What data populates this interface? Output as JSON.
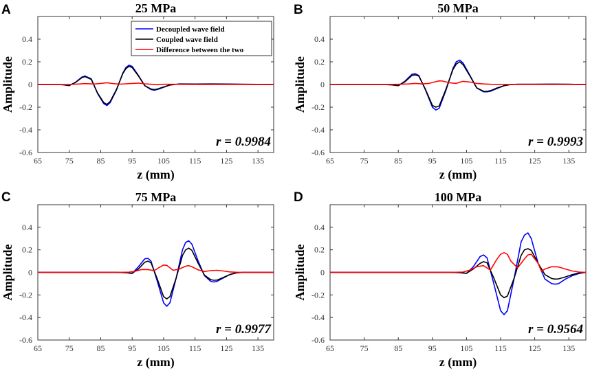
{
  "chart_data": [
    {
      "type": "line",
      "panel_label": "A",
      "title": "25 MPa",
      "xlabel": "z (mm)",
      "ylabel": "Amplitude",
      "xlim": [
        65,
        140
      ],
      "ylim": [
        -0.6,
        0.6
      ],
      "xticks": [
        65,
        75,
        85,
        95,
        105,
        115,
        125,
        135
      ],
      "yticks": [
        -0.6,
        -0.4,
        -0.2,
        0,
        0.2,
        0.4
      ],
      "annotation": "r = 0.9984",
      "legend": [
        "Decoupled wave field",
        "Coupled wave field",
        "Difference between the two"
      ],
      "show_legend": true,
      "series": [
        {
          "name": "Decoupled wave field",
          "color": "#0000ff",
          "x": [
            65,
            70,
            73,
            75,
            77,
            79,
            80,
            82,
            84,
            86,
            87,
            88,
            90,
            92,
            93,
            94,
            95,
            97,
            99,
            101,
            102,
            103,
            105,
            107,
            110,
            115,
            120,
            125,
            130,
            135,
            140
          ],
          "y": [
            0,
            0,
            -0.002,
            -0.01,
            0.02,
            0.065,
            0.075,
            0.05,
            -0.08,
            -0.17,
            -0.185,
            -0.16,
            -0.05,
            0.1,
            0.15,
            0.17,
            0.16,
            0.08,
            -0.01,
            -0.045,
            -0.05,
            -0.045,
            -0.025,
            -0.005,
            0.005,
            0.004,
            0.005,
            0.004,
            0.002,
            0.001,
            0
          ]
        },
        {
          "name": "Coupled wave field",
          "color": "#000000",
          "x": [
            65,
            70,
            73,
            75,
            77,
            79,
            80,
            82,
            84,
            86,
            87,
            88,
            90,
            92,
            93,
            94,
            95,
            97,
            99,
            101,
            102,
            103,
            105,
            107,
            110,
            115,
            120,
            125,
            130,
            135,
            140
          ],
          "y": [
            0,
            0,
            -0.002,
            -0.008,
            0.018,
            0.06,
            0.07,
            0.045,
            -0.075,
            -0.16,
            -0.175,
            -0.15,
            -0.045,
            0.095,
            0.14,
            0.16,
            0.15,
            0.075,
            -0.01,
            -0.04,
            -0.045,
            -0.04,
            -0.022,
            -0.004,
            0.004,
            0.003,
            0.004,
            0.003,
            0.002,
            0.001,
            0
          ]
        },
        {
          "name": "Difference between the two",
          "color": "#ff0000",
          "x": [
            65,
            70,
            75,
            78,
            80,
            83,
            85,
            87,
            89,
            91,
            93,
            95,
            97,
            99,
            101,
            103,
            105,
            108,
            110,
            115,
            120,
            140
          ],
          "y": [
            0,
            0,
            0,
            0.004,
            0.008,
            0.004,
            0.01,
            0.015,
            0.008,
            0.003,
            0.006,
            0.01,
            0.012,
            0.006,
            0.002,
            -0.002,
            0.002,
            0.002,
            0.001,
            0,
            0,
            0
          ]
        }
      ]
    },
    {
      "type": "line",
      "panel_label": "B",
      "title": "50 MPa",
      "xlabel": "z (mm)",
      "ylabel": "Amplitude",
      "xlim": [
        65,
        140
      ],
      "ylim": [
        -0.6,
        0.6
      ],
      "xticks": [
        65,
        75,
        85,
        95,
        105,
        115,
        125,
        135
      ],
      "yticks": [
        -0.6,
        -0.4,
        -0.2,
        0,
        0.2,
        0.4
      ],
      "annotation": "r = 0.9993",
      "show_legend": false,
      "series": [
        {
          "name": "Decoupled wave field",
          "color": "#0000ff",
          "x": [
            65,
            75,
            80,
            83,
            85,
            87,
            89,
            90,
            91,
            93,
            95,
            96,
            97,
            99,
            101,
            102,
            103,
            104,
            106,
            108,
            110,
            111,
            112,
            114,
            116,
            118,
            120,
            125,
            130,
            135,
            140
          ],
          "y": [
            0,
            0,
            0,
            -0.003,
            -0.01,
            0.03,
            0.09,
            0.095,
            0.08,
            -0.05,
            -0.2,
            -0.225,
            -0.21,
            -0.05,
            0.14,
            0.2,
            0.215,
            0.19,
            0.08,
            -0.03,
            -0.065,
            -0.065,
            -0.06,
            -0.035,
            -0.01,
            0,
            0.002,
            0.002,
            0.003,
            0.002,
            0
          ]
        },
        {
          "name": "Coupled wave field",
          "color": "#000000",
          "x": [
            65,
            75,
            80,
            83,
            85,
            87,
            89,
            90,
            91,
            93,
            95,
            96,
            97,
            99,
            101,
            102,
            103,
            104,
            106,
            108,
            110,
            111,
            112,
            114,
            116,
            118,
            120,
            125,
            130,
            135,
            140
          ],
          "y": [
            0,
            0,
            0,
            -0.003,
            -0.01,
            0.025,
            0.08,
            0.085,
            0.075,
            -0.045,
            -0.185,
            -0.2,
            -0.19,
            -0.04,
            0.13,
            0.18,
            0.2,
            0.175,
            0.075,
            -0.03,
            -0.06,
            -0.06,
            -0.055,
            -0.03,
            -0.01,
            0,
            0.002,
            0.002,
            0.003,
            0.002,
            0
          ]
        },
        {
          "name": "Difference between the two",
          "color": "#ff0000",
          "x": [
            65,
            80,
            85,
            88,
            90,
            92,
            94,
            96,
            97,
            98,
            100,
            102,
            103,
            104,
            106,
            108,
            110,
            112,
            114,
            118,
            140
          ],
          "y": [
            0,
            0,
            0.002,
            0.005,
            0.01,
            0.005,
            0.01,
            0.025,
            0.032,
            0.03,
            0.015,
            0.01,
            0.02,
            0.028,
            0.022,
            0.01,
            0.005,
            0.002,
            0.001,
            0,
            0
          ]
        }
      ]
    },
    {
      "type": "line",
      "panel_label": "C",
      "title": "75 MPa",
      "xlabel": "z (mm)",
      "ylabel": "Amplitude",
      "xlim": [
        65,
        140
      ],
      "ylim": [
        -0.6,
        0.6
      ],
      "xticks": [
        65,
        75,
        85,
        95,
        105,
        115,
        125,
        135
      ],
      "yticks": [
        -0.6,
        -0.4,
        -0.2,
        0,
        0.2,
        0.4
      ],
      "annotation": "r = 0.9977",
      "show_legend": false,
      "series": [
        {
          "name": "Decoupled wave field",
          "color": "#0000ff",
          "x": [
            65,
            90,
            93,
            95,
            97,
            99,
            100,
            101,
            103,
            105,
            106,
            107,
            109,
            111,
            112,
            113,
            114,
            116,
            118,
            120,
            121,
            122,
            124,
            126,
            128,
            130,
            140
          ],
          "y": [
            0,
            0,
            -0.003,
            -0.01,
            0.05,
            0.12,
            0.125,
            0.1,
            -0.08,
            -0.27,
            -0.3,
            -0.27,
            -0.05,
            0.2,
            0.265,
            0.28,
            0.25,
            0.1,
            -0.03,
            -0.08,
            -0.085,
            -0.08,
            -0.05,
            -0.02,
            -0.005,
            0,
            0
          ]
        },
        {
          "name": "Coupled wave field",
          "color": "#000000",
          "x": [
            65,
            90,
            93,
            95,
            97,
            99,
            100,
            101,
            103,
            105,
            106,
            107,
            109,
            111,
            112,
            113,
            114,
            116,
            118,
            120,
            121,
            122,
            124,
            126,
            128,
            130,
            140
          ],
          "y": [
            0,
            0,
            -0.003,
            -0.008,
            0.03,
            0.09,
            0.1,
            0.085,
            -0.06,
            -0.215,
            -0.235,
            -0.215,
            -0.05,
            0.15,
            0.2,
            0.215,
            0.195,
            0.08,
            -0.025,
            -0.065,
            -0.07,
            -0.068,
            -0.045,
            -0.02,
            -0.005,
            0,
            0
          ]
        },
        {
          "name": "Difference between the two",
          "color": "#ff0000",
          "x": [
            65,
            90,
            94,
            96,
            98,
            100,
            102,
            104,
            105,
            106,
            107,
            108,
            110,
            112,
            113,
            114,
            116,
            118,
            120,
            122,
            124,
            126,
            128,
            130,
            140
          ],
          "y": [
            0,
            0,
            0.002,
            0.01,
            0.025,
            0.025,
            0.015,
            0.05,
            0.065,
            0.062,
            0.04,
            0.018,
            0.03,
            0.055,
            0.06,
            0.05,
            0.022,
            0.008,
            0.015,
            0.018,
            0.012,
            0.004,
            0.001,
            0,
            0
          ]
        }
      ]
    },
    {
      "type": "line",
      "panel_label": "D",
      "title": "100 MPa",
      "xlabel": "z (mm)",
      "ylabel": "Amplitude",
      "xlim": [
        65,
        140
      ],
      "ylim": [
        -0.6,
        0.6
      ],
      "xticks": [
        65,
        75,
        85,
        95,
        105,
        115,
        125,
        135
      ],
      "yticks": [
        -0.6,
        -0.4,
        -0.2,
        0,
        0.2,
        0.4
      ],
      "annotation": "r = 0.9564",
      "show_legend": false,
      "series": [
        {
          "name": "Decoupled wave field",
          "color": "#0000ff",
          "x": [
            65,
            100,
            103,
            105,
            107,
            109,
            110,
            111,
            113,
            115,
            116,
            117,
            119,
            121,
            122,
            123,
            124,
            126,
            128,
            130,
            131,
            132,
            134,
            136,
            138,
            140
          ],
          "y": [
            0,
            0,
            -0.003,
            -0.01,
            0.05,
            0.14,
            0.155,
            0.13,
            -0.1,
            -0.34,
            -0.375,
            -0.34,
            -0.05,
            0.27,
            0.33,
            0.35,
            0.3,
            0.08,
            -0.06,
            -0.1,
            -0.105,
            -0.1,
            -0.06,
            -0.03,
            -0.01,
            0
          ]
        },
        {
          "name": "Coupled wave field",
          "color": "#000000",
          "x": [
            65,
            100,
            103,
            105,
            107,
            109,
            110,
            111,
            113,
            115,
            116,
            117,
            119,
            121,
            122,
            123,
            124,
            126,
            128,
            130,
            131,
            132,
            134,
            136,
            138,
            140
          ],
          "y": [
            0,
            0,
            -0.002,
            -0.008,
            0.03,
            0.08,
            0.095,
            0.085,
            -0.05,
            -0.2,
            -0.225,
            -0.21,
            -0.05,
            0.15,
            0.2,
            0.21,
            0.195,
            0.08,
            -0.02,
            -0.055,
            -0.06,
            -0.058,
            -0.04,
            -0.02,
            -0.005,
            0
          ]
        },
        {
          "name": "Difference between the two",
          "color": "#ff0000",
          "x": [
            65,
            100,
            104,
            106,
            108,
            110,
            112,
            114,
            115,
            116,
            117,
            118,
            120,
            122,
            123,
            124,
            126,
            127,
            128,
            130,
            132,
            134,
            136,
            138,
            140
          ],
          "y": [
            0,
            0,
            0.003,
            0.02,
            0.05,
            0.06,
            0.02,
            0.12,
            0.16,
            0.175,
            0.16,
            0.1,
            0.04,
            0.12,
            0.155,
            0.16,
            0.08,
            0.01,
            0.03,
            0.05,
            0.048,
            0.03,
            0.012,
            0.003,
            0
          ]
        }
      ]
    }
  ]
}
